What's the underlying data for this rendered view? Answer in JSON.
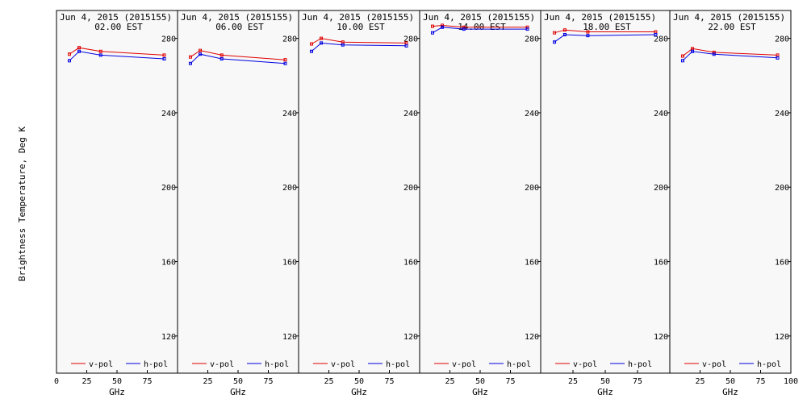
{
  "figure": {
    "ylabel": "Brightness Temperature, Deg K",
    "xlabel": "GHz"
  },
  "chart_data": [
    {
      "type": "line",
      "title": "Jun  4, 2015 (2015155)",
      "subtitle": "02.00 EST",
      "xlabel": "GHz",
      "ylabel": "Brightness Temperature, Deg K",
      "xlim": [
        0,
        100
      ],
      "ylim": [
        100,
        295
      ],
      "xticks": [
        0,
        25,
        50,
        75
      ],
      "yticks": [
        120,
        160,
        200,
        240,
        280
      ],
      "x": [
        10.65,
        18.7,
        36.5,
        89.0
      ],
      "series": [
        {
          "name": "v-pol",
          "color": "#e00000",
          "values": [
            271.5,
            275,
            273,
            271
          ]
        },
        {
          "name": "h-pol",
          "color": "#0000e0",
          "values": [
            268,
            273,
            271,
            269
          ]
        }
      ]
    },
    {
      "type": "line",
      "title": "Jun  4, 2015 (2015155)",
      "subtitle": "06.00 EST",
      "xlabel": "GHz",
      "ylabel": "Brightness Temperature, Deg K",
      "xlim": [
        0,
        100
      ],
      "ylim": [
        100,
        295
      ],
      "xticks": [
        25,
        50,
        75
      ],
      "yticks": [
        120,
        160,
        200,
        240,
        280
      ],
      "x": [
        10.65,
        18.7,
        36.5,
        89.0
      ],
      "series": [
        {
          "name": "v-pol",
          "color": "#e00000",
          "values": [
            270,
            273.5,
            271,
            268.5
          ]
        },
        {
          "name": "h-pol",
          "color": "#0000e0",
          "values": [
            266.5,
            271.5,
            269,
            266.5
          ]
        }
      ]
    },
    {
      "type": "line",
      "title": "Jun  4, 2015 (2015155)",
      "subtitle": "10.00 EST",
      "xlabel": "GHz",
      "ylabel": "Brightness Temperature, Deg K",
      "xlim": [
        0,
        100
      ],
      "ylim": [
        100,
        295
      ],
      "xticks": [
        25,
        50,
        75
      ],
      "yticks": [
        120,
        160,
        200,
        240,
        280
      ],
      "x": [
        10.65,
        18.7,
        36.5,
        89.0
      ],
      "series": [
        {
          "name": "v-pol",
          "color": "#e00000",
          "values": [
            277,
            280,
            278,
            277.5
          ]
        },
        {
          "name": "h-pol",
          "color": "#0000e0",
          "values": [
            273,
            277.5,
            276.5,
            276
          ]
        }
      ]
    },
    {
      "type": "line",
      "title": "Jun  4, 2015 (2015155)",
      "subtitle": "14.00 EST",
      "xlabel": "GHz",
      "ylabel": "Brightness Temperature, Deg K",
      "xlim": [
        0,
        100
      ],
      "ylim": [
        100,
        295
      ],
      "xticks": [
        25,
        50,
        75
      ],
      "yticks": [
        120,
        160,
        200,
        240,
        280
      ],
      "x": [
        10.65,
        18.7,
        36.5,
        89.0
      ],
      "series": [
        {
          "name": "v-pol",
          "color": "#e00000",
          "values": [
            286.5,
            287,
            286,
            286
          ]
        },
        {
          "name": "h-pol",
          "color": "#0000e0",
          "values": [
            283,
            286,
            285,
            285
          ]
        }
      ]
    },
    {
      "type": "line",
      "title": "Jun  4, 2015 (2015155)",
      "subtitle": "18.00 EST",
      "xlabel": "GHz",
      "ylabel": "Brightness Temperature, Deg K",
      "xlim": [
        0,
        100
      ],
      "ylim": [
        100,
        295
      ],
      "xticks": [
        25,
        50,
        75
      ],
      "yticks": [
        120,
        160,
        200,
        240,
        280
      ],
      "x": [
        10.65,
        18.7,
        36.5,
        89.0
      ],
      "series": [
        {
          "name": "v-pol",
          "color": "#e00000",
          "values": [
            283,
            284.5,
            283.5,
            283.5
          ]
        },
        {
          "name": "h-pol",
          "color": "#0000e0",
          "values": [
            278,
            282,
            281.5,
            282
          ]
        }
      ]
    },
    {
      "type": "line",
      "title": "Jun  4, 2015 (2015155)",
      "subtitle": "22.00 EST",
      "xlabel": "GHz",
      "ylabel": "Brightness Temperature, Deg K",
      "xlim": [
        0,
        100
      ],
      "ylim": [
        100,
        295
      ],
      "xticks": [
        25,
        50,
        75,
        100
      ],
      "yticks": [
        120,
        160,
        200,
        240,
        280
      ],
      "x": [
        10.65,
        18.7,
        36.5,
        89.0
      ],
      "series": [
        {
          "name": "v-pol",
          "color": "#e00000",
          "values": [
            270.5,
            274.5,
            272.5,
            271
          ]
        },
        {
          "name": "h-pol",
          "color": "#0000e0",
          "values": [
            268,
            273,
            271.5,
            269.5
          ]
        }
      ]
    }
  ]
}
